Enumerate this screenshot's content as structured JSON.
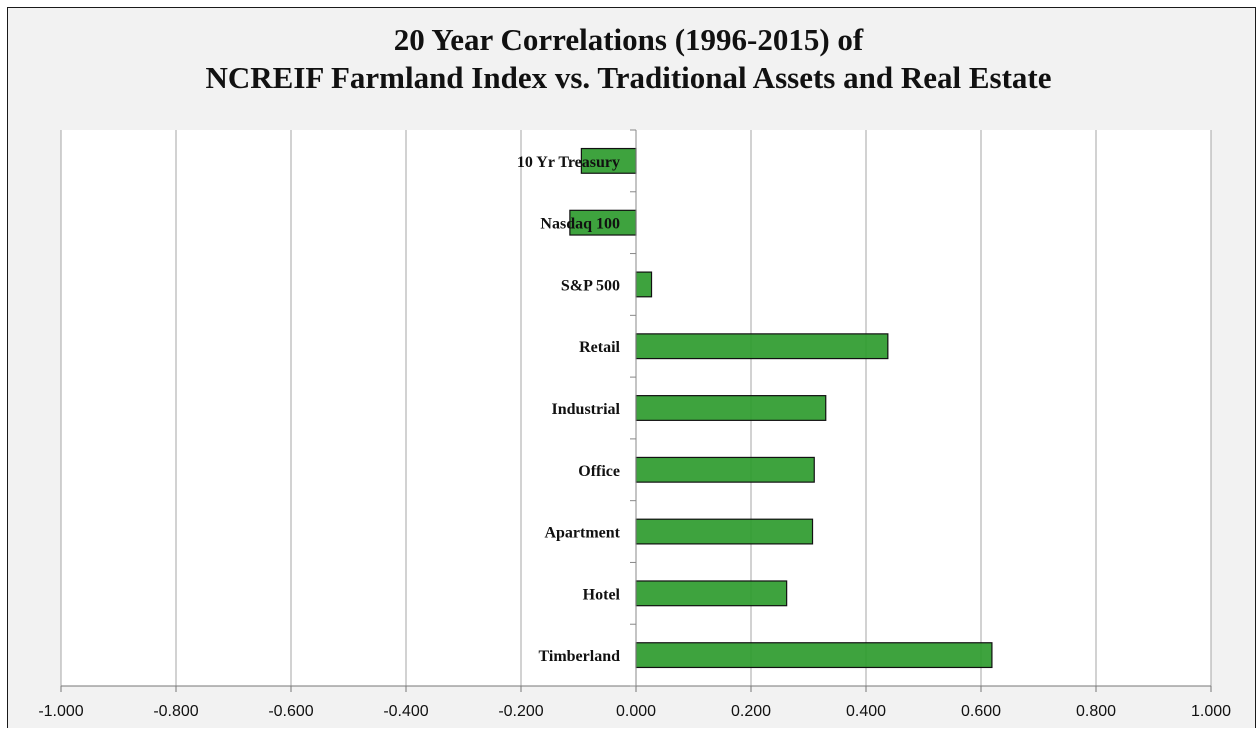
{
  "chart_data": {
    "type": "bar",
    "orientation": "horizontal",
    "title": [
      "20 Year Correlations (1996-2015) of",
      "NCREIF Farmland Index vs. Traditional Assets and Real Estate"
    ],
    "categories": [
      "10 Yr Treasury",
      "Nasdaq 100",
      "S&P 500",
      "Retail",
      "Industrial",
      "Office",
      "Apartment",
      "Hotel",
      "Timberland"
    ],
    "values": [
      -0.095,
      -0.115,
      0.027,
      0.438,
      0.33,
      0.31,
      0.307,
      0.262,
      0.619
    ],
    "xlim": [
      -1.0,
      1.0
    ],
    "xticks": [
      -1.0,
      -0.8,
      -0.6,
      -0.4,
      -0.2,
      0.0,
      0.2,
      0.4,
      0.6,
      0.8,
      1.0
    ],
    "xtick_labels": [
      "-1.000",
      "-0.800",
      "-0.600",
      "-0.400",
      "-0.200",
      "0.000",
      "0.200",
      "0.400",
      "0.600",
      "0.800",
      "1.000"
    ],
    "xlabel": "",
    "ylabel": "",
    "grid": "vertical",
    "legend": "none",
    "colors": {
      "bar_fill": "#2e9b2e",
      "bar_stroke": "#111111",
      "plot_bg": "#ffffff",
      "chart_bg": "#f2f2f2",
      "grid": "#a6a6a6"
    }
  }
}
